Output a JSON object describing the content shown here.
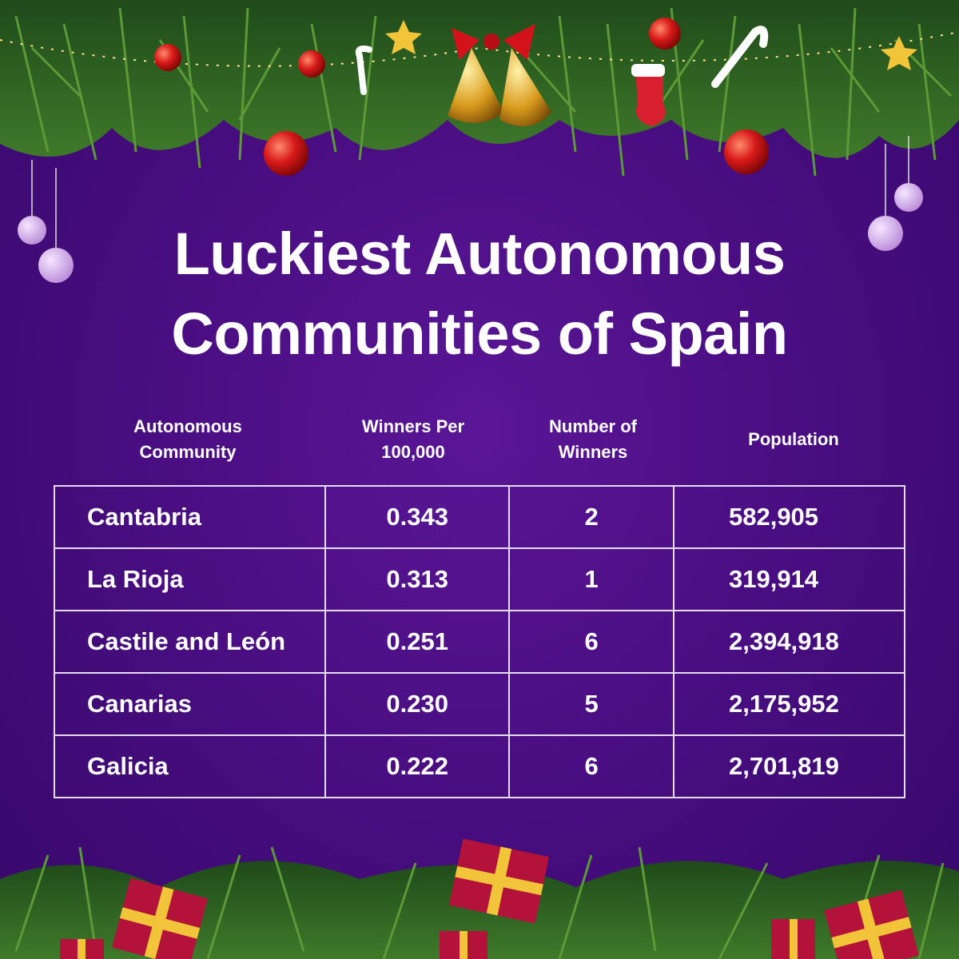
{
  "header": {
    "title": [
      "Luckiest Autonomous",
      "Communities of Spain"
    ]
  },
  "table": {
    "columns": [
      [
        "Autonomous",
        "Community"
      ],
      [
        "Winners Per",
        "100,000"
      ],
      [
        "Number of",
        "Winners"
      ],
      [
        "Population"
      ]
    ],
    "rows": [
      [
        "Cantabria",
        "0.343",
        "2",
        "582,905"
      ],
      [
        "La Rioja",
        "0.313",
        "1",
        "319,914"
      ],
      [
        "Castile and León",
        "0.251",
        "6",
        "2,394,918"
      ],
      [
        "Canarias",
        "0.230",
        "5",
        "2,175,952"
      ],
      [
        "Galicia",
        "0.222",
        "6",
        "2,701,819"
      ]
    ]
  }
}
